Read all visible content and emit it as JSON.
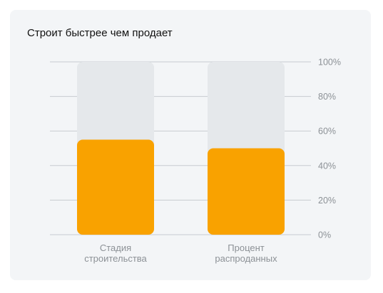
{
  "card": {
    "title": "Строит быстрее чем продает"
  },
  "colors": {
    "bar_fill": "#f9a200",
    "bar_track": "#e5e8eb",
    "grid": "#c7cbd0",
    "text_muted": "#8c9196",
    "card_bg": "#f3f5f7"
  },
  "chart_data": {
    "type": "bar",
    "title": "Строит быстрее чем продает",
    "categories": [
      [
        "Стадия",
        "строительства"
      ],
      [
        "Процент",
        "распроданных"
      ]
    ],
    "values": [
      55,
      50
    ],
    "y_ticks": [
      "0%",
      "20%",
      "40%",
      "60%",
      "80%",
      "100%"
    ],
    "ylim": [
      0,
      100
    ],
    "y_axis_position": "right",
    "grid": true
  }
}
